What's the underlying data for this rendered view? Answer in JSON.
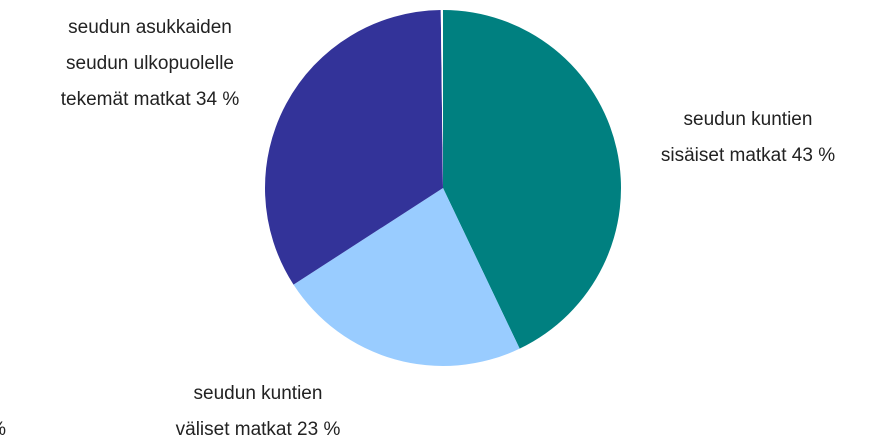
{
  "chart_data": {
    "type": "pie",
    "labels": [
      [
        "seudun kuntien",
        "sisäiset matkat 43 %"
      ],
      [
        "seudun kuntien",
        "väliset matkat 23 %"
      ],
      [
        "seudun asukkaiden",
        "seudun ulkopuolelle",
        "tekemät matkat 34 %"
      ],
      [
        "%"
      ]
    ],
    "values": [
      43,
      23,
      34,
      0.2
    ],
    "colors": [
      "#008080",
      "#99ccff",
      "#333399",
      "#ffffff"
    ]
  }
}
